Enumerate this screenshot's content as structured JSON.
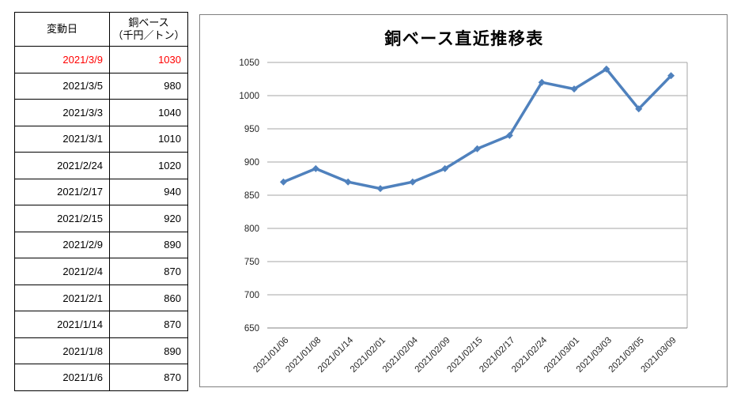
{
  "table": {
    "headers": {
      "date": "変動日",
      "value": "銅ベース\n（千円／トン）"
    },
    "rows": [
      {
        "date": "2021/3/9",
        "value": "1030",
        "highlight": true
      },
      {
        "date": "2021/3/5",
        "value": "980",
        "highlight": false
      },
      {
        "date": "2021/3/3",
        "value": "1040",
        "highlight": false
      },
      {
        "date": "2021/3/1",
        "value": "1010",
        "highlight": false
      },
      {
        "date": "2021/2/24",
        "value": "1020",
        "highlight": false
      },
      {
        "date": "2021/2/17",
        "value": "940",
        "highlight": false
      },
      {
        "date": "2021/2/15",
        "value": "920",
        "highlight": false
      },
      {
        "date": "2021/2/9",
        "value": "890",
        "highlight": false
      },
      {
        "date": "2021/2/4",
        "value": "870",
        "highlight": false
      },
      {
        "date": "2021/2/1",
        "value": "860",
        "highlight": false
      },
      {
        "date": "2021/1/14",
        "value": "870",
        "highlight": false
      },
      {
        "date": "2021/1/8",
        "value": "890",
        "highlight": false
      },
      {
        "date": "2021/1/6",
        "value": "870",
        "highlight": false
      }
    ],
    "highlight_color": "#ff0000"
  },
  "chart_data": {
    "type": "line",
    "title": "銅ベース直近推移表",
    "categories": [
      "2021/01/06",
      "2021/01/08",
      "2021/01/14",
      "2021/02/01",
      "2021/02/04",
      "2021/02/09",
      "2021/02/15",
      "2021/02/17",
      "2021/02/24",
      "2021/03/01",
      "2021/03/03",
      "2021/03/05",
      "2021/03/09"
    ],
    "values": [
      870,
      890,
      870,
      860,
      870,
      890,
      920,
      940,
      1020,
      1010,
      1040,
      980,
      1030
    ],
    "xlabel": "",
    "ylabel": "",
    "ylim": [
      650,
      1050
    ],
    "ytick_step": 50,
    "grid": true,
    "legend": "none",
    "marker": "diamond",
    "colors": {
      "line": "#4F81BD",
      "marker": "#4F81BD",
      "gridline": "#A6A6A6",
      "axis_line": "#808080",
      "tick_label": "#262626",
      "title": "#000000"
    }
  }
}
